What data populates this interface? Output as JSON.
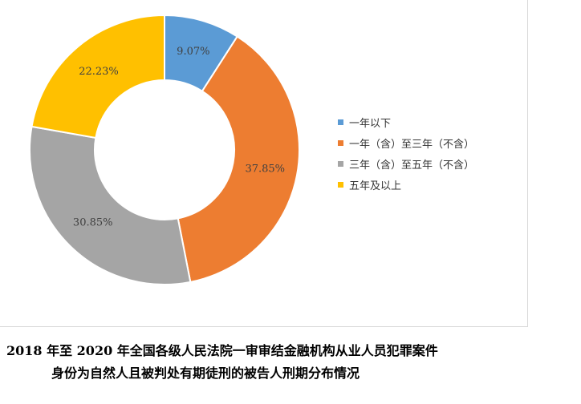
{
  "chart_data": {
    "type": "pie",
    "variant": "donut",
    "title": "",
    "categories": [
      "一年以下",
      "一年（含）至三年（不含）",
      "三年（含）至五年（不含）",
      "五年及以上"
    ],
    "values": [
      9.07,
      37.85,
      30.85,
      22.23
    ],
    "value_labels": [
      "9.07%",
      "37.85%",
      "30.85%",
      "22.23%"
    ],
    "colors": [
      "#5b9bd5",
      "#ed7d31",
      "#a5a5a5",
      "#ffc000"
    ],
    "start": "top, clockwise",
    "legend_position": "right"
  },
  "caption": {
    "line1": "2018 年至 2020 年全国各级人民法院一审审结金融机构从业人员犯罪案件",
    "line2": "身份为自然人且被判处有期徒刑的被告人刑期分布情况"
  }
}
